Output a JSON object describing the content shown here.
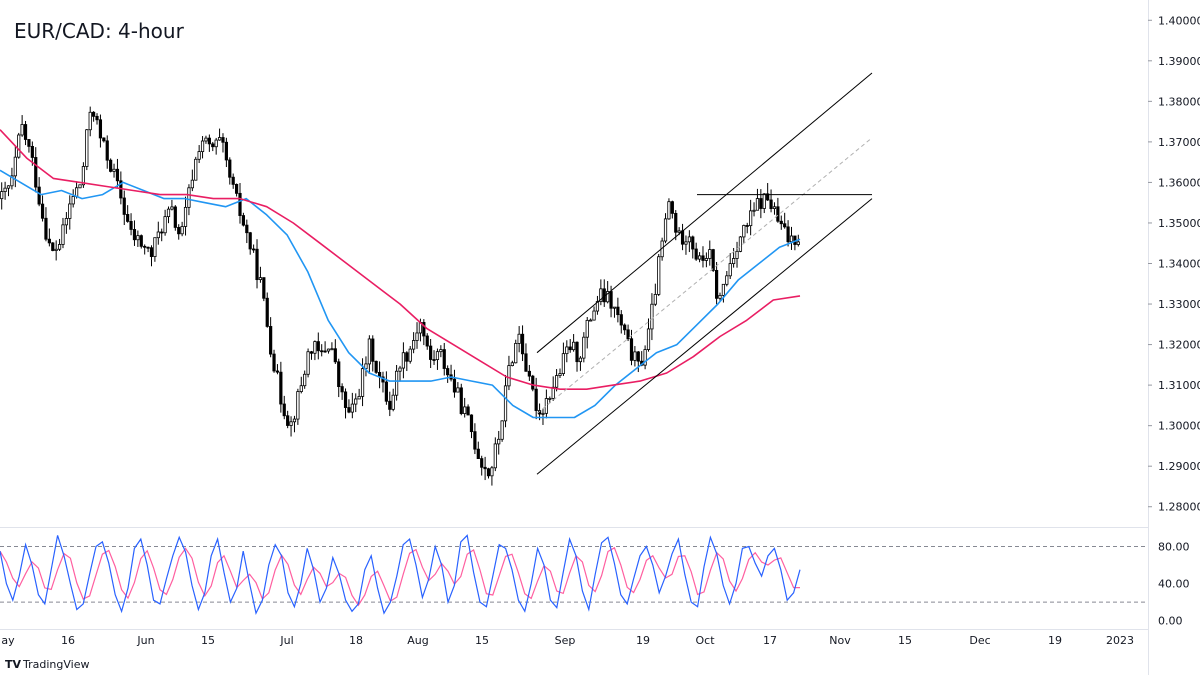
{
  "title": "EUR/CAD: 4-hour",
  "brand": {
    "name": "TradingView"
  },
  "colors": {
    "candle": "#000000",
    "ema_long": "#e91e63",
    "ema_short": "#2196f3",
    "stoch_k": "#2962ff",
    "stoch_d": "#ff5fa0",
    "trendline": "#000000",
    "midline": "#b0b0b0",
    "grid": "#e0e3eb",
    "axis_text": "#131722"
  },
  "chart_data": [
    {
      "type": "candlestick",
      "title": "EUR/CAD: 4-hour",
      "ylim": [
        1.275,
        1.405
      ],
      "y_ticks": [
        "1.28000",
        "1.29000",
        "1.30000",
        "1.31000",
        "1.32000",
        "1.33000",
        "1.34000",
        "1.35000",
        "1.36000",
        "1.37000",
        "1.38000",
        "1.39000",
        "1.40000"
      ],
      "x_ticks": [
        "ay",
        "16",
        "Jun",
        "15",
        "Jul",
        "18",
        "Aug",
        "15",
        "Sep",
        "19",
        "Oct",
        "17",
        "Nov",
        "15",
        "Dec",
        "19",
        "2023"
      ],
      "price_path": [
        1.356,
        1.36,
        1.374,
        1.366,
        1.353,
        1.342,
        1.346,
        1.356,
        1.36,
        1.38,
        1.37,
        1.364,
        1.356,
        1.347,
        1.345,
        1.342,
        1.349,
        1.353,
        1.346,
        1.36,
        1.371,
        1.368,
        1.37,
        1.36,
        1.352,
        1.344,
        1.335,
        1.32,
        1.307,
        1.3,
        1.309,
        1.32,
        1.317,
        1.321,
        1.308,
        1.302,
        1.31,
        1.32,
        1.311,
        1.305,
        1.316,
        1.319,
        1.326,
        1.316,
        1.318,
        1.312,
        1.306,
        1.3,
        1.292,
        1.288,
        1.298,
        1.315,
        1.323,
        1.31,
        1.303,
        1.308,
        1.313,
        1.32,
        1.317,
        1.326,
        1.332,
        1.331,
        1.326,
        1.319,
        1.314,
        1.323,
        1.34,
        1.355,
        1.346,
        1.348,
        1.34,
        1.343,
        1.33,
        1.339,
        1.346,
        1.35,
        1.355,
        1.356,
        1.35,
        1.346,
        1.347
      ],
      "series": [
        {
          "name": "",
          "kind": "ema_short",
          "values": [
            1.363,
            1.36,
            1.357,
            1.358,
            1.356,
            1.357,
            1.36,
            1.358,
            1.356,
            1.356,
            1.355,
            1.354,
            1.356,
            1.352,
            1.347,
            1.338,
            1.326,
            1.318,
            1.313,
            1.311,
            1.311,
            1.311,
            1.312,
            1.311,
            1.31,
            1.305,
            1.302,
            1.302,
            1.302,
            1.305,
            1.31,
            1.314,
            1.318,
            1.32,
            1.325,
            1.33,
            1.336,
            1.34,
            1.344,
            1.346
          ]
        },
        {
          "name": "",
          "kind": "ema_long",
          "values": [
            1.373,
            1.366,
            1.361,
            1.36,
            1.359,
            1.358,
            1.357,
            1.357,
            1.356,
            1.356,
            1.354,
            1.35,
            1.345,
            1.34,
            1.335,
            1.33,
            1.324,
            1.32,
            1.316,
            1.312,
            1.31,
            1.309,
            1.309,
            1.31,
            1.311,
            1.313,
            1.317,
            1.322,
            1.326,
            1.331,
            1.332
          ]
        }
      ],
      "channel": {
        "lower": [
          [
            1.288
          ],
          [
            1.356
          ]
        ],
        "upper": [
          [
            1.318
          ],
          [
            1.387
          ]
        ],
        "middle": [
          [
            1.303
          ],
          [
            1.371
          ]
        ],
        "resistance": 1.357
      }
    },
    {
      "type": "line",
      "title": "",
      "ylim": [
        -8,
        100
      ],
      "y_ticks": [
        "80.00",
        "40.00",
        "0.00"
      ],
      "levels": [
        80,
        20
      ],
      "series": [
        {
          "name": "",
          "kind": "stoch",
          "values": [
            75,
            40,
            22,
            48,
            82,
            60,
            28,
            18,
            55,
            92,
            70,
            40,
            12,
            18,
            50,
            80,
            85,
            62,
            28,
            10,
            35,
            78,
            88,
            60,
            22,
            18,
            45,
            70,
            90,
            74,
            38,
            12,
            30,
            70,
            88,
            52,
            20,
            35,
            75,
            40,
            8,
            22,
            60,
            82,
            70,
            30,
            15,
            40,
            78,
            55,
            20,
            35,
            68,
            50,
            22,
            10,
            18,
            55,
            70,
            35,
            8,
            20,
            48,
            82,
            88,
            60,
            25,
            45,
            80,
            60,
            20,
            38,
            85,
            92,
            52,
            20,
            15,
            48,
            82,
            78,
            55,
            22,
            10,
            40,
            78,
            60,
            22,
            14,
            52,
            88,
            70,
            32,
            12,
            50,
            84,
            90,
            62,
            28,
            18,
            45,
            70,
            80,
            60,
            30,
            48,
            72,
            88,
            50,
            20,
            15,
            58,
            90,
            72,
            38,
            18,
            40,
            78,
            80,
            62,
            48,
            70,
            78,
            55,
            22,
            30,
            55
          ]
        }
      ]
    }
  ]
}
